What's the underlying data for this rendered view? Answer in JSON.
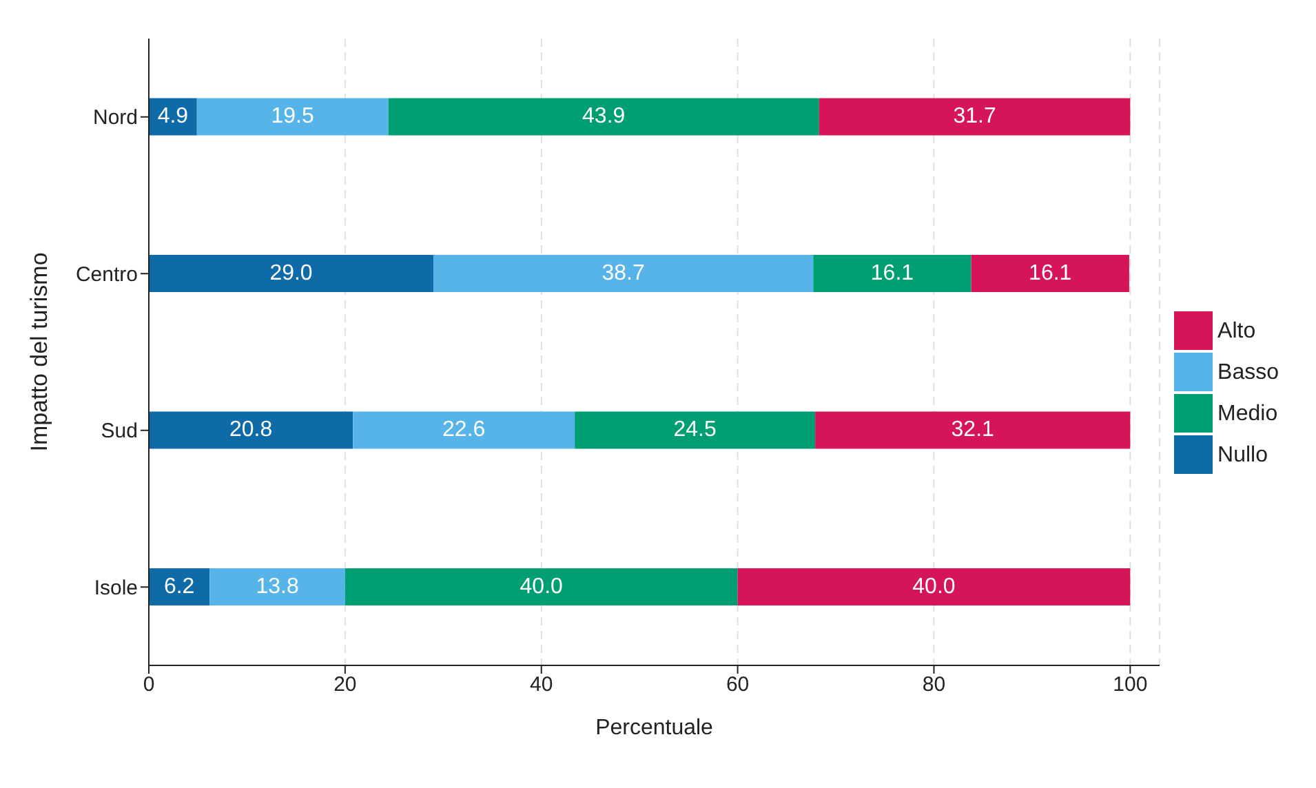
{
  "chart_data": {
    "type": "bar",
    "orientation": "horizontal",
    "stacked": true,
    "categories": [
      "Nord",
      "Centro",
      "Sud",
      "Isole"
    ],
    "series": [
      {
        "name": "Nullo",
        "color": "#0f6aa8",
        "values": [
          4.9,
          29.0,
          20.8,
          6.2
        ],
        "value_labels": [
          "4.9",
          "29.0",
          "20.8",
          "6.2"
        ]
      },
      {
        "name": "Basso",
        "color": "#56b4e9",
        "values": [
          19.5,
          38.7,
          22.6,
          13.8
        ],
        "value_labels": [
          "19.5",
          "38.7",
          "22.6",
          "13.8"
        ]
      },
      {
        "name": "Medio",
        "color": "#009e73",
        "values": [
          43.9,
          16.1,
          24.5,
          40.0
        ],
        "value_labels": [
          "43.9",
          "16.1",
          "24.5",
          "40.0"
        ]
      },
      {
        "name": "Alto",
        "color": "#d5145a",
        "values": [
          31.7,
          16.1,
          32.1,
          40.0
        ],
        "value_labels": [
          "31.7",
          "16.1",
          "32.1",
          "40.0"
        ]
      }
    ],
    "xlim": [
      0,
      103
    ],
    "xticks": [
      0,
      20,
      40,
      60,
      80,
      100
    ],
    "xlabel": "Percentuale",
    "ylabel": "Impatto del turismo",
    "grid": "x",
    "legend": "right"
  }
}
